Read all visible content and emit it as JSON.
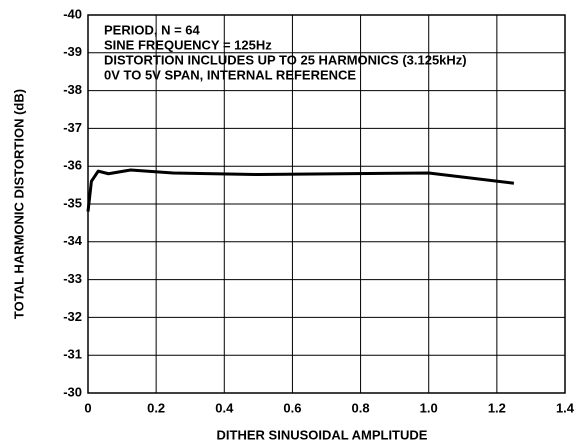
{
  "chart_data": {
    "type": "line",
    "annotations": [
      "PERIOD, N = 64",
      "SINE FREQUENCY = 125Hz",
      "DISTORTION INCLUDES UP TO 25 HARMONICS (3.125kHz)",
      "0V TO 5V SPAN, INTERNAL REFERENCE"
    ],
    "x_label": "DITHER SINUSOIDAL AMPLITUDE",
    "y_label": "TOTAL HARMONIC DISTORTION (dB)",
    "series": [
      {
        "color": "#000000",
        "x": [
          0,
          0.01,
          0.03,
          0.06,
          0.125,
          0.25,
          0.5,
          1.0,
          1.25
        ],
        "values": [
          -34.8,
          -35.6,
          -35.87,
          -35.8,
          -35.9,
          -35.82,
          -35.78,
          -35.82,
          -35.55
        ]
      }
    ],
    "xlim": [
      0,
      1.4
    ],
    "xticks": [
      0,
      0.2,
      0.4,
      0.6,
      0.8,
      {
        "value": 1,
        "label": "1.0"
      },
      1.2,
      1.4
    ],
    "ylim": [
      -30,
      -40
    ],
    "yticks": [
      -40,
      -39,
      -38,
      -37,
      -36,
      -35,
      -34,
      -33,
      -32,
      -31,
      -30
    ],
    "grid": true
  }
}
